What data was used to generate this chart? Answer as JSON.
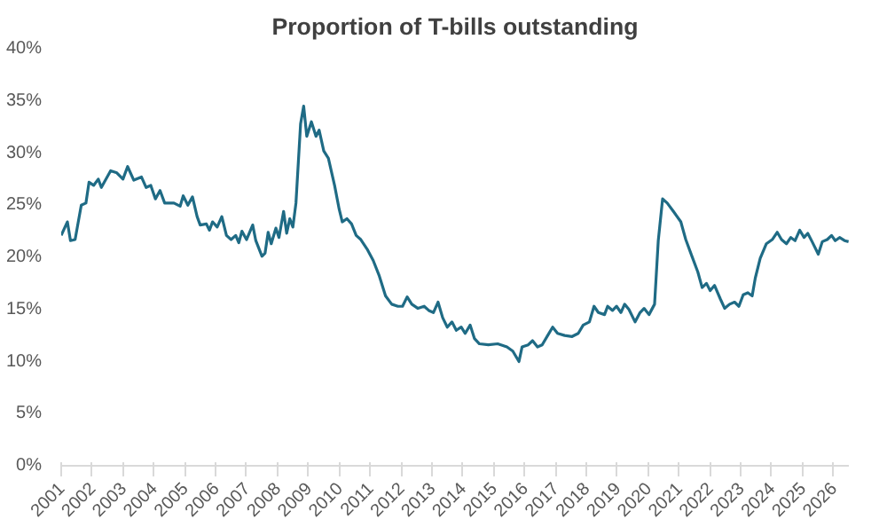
{
  "chart_data": {
    "type": "line",
    "title": "Proportion of T-bills outstanding",
    "x": [
      2001.0,
      2001.2,
      2001.3,
      2001.45,
      2001.65,
      2001.8,
      2001.9,
      2002.05,
      2002.2,
      2002.3,
      2002.6,
      2002.8,
      2003.0,
      2003.15,
      2003.35,
      2003.6,
      2003.75,
      2003.9,
      2004.05,
      2004.2,
      2004.35,
      2004.65,
      2004.85,
      2004.95,
      2005.1,
      2005.25,
      2005.4,
      2005.5,
      2005.7,
      2005.8,
      2005.9,
      2006.05,
      2006.2,
      2006.35,
      2006.5,
      2006.65,
      2006.75,
      2006.85,
      2007.0,
      2007.2,
      2007.3,
      2007.5,
      2007.6,
      2007.7,
      2007.8,
      2007.95,
      2008.05,
      2008.2,
      2008.3,
      2008.4,
      2008.5,
      2008.6,
      2008.75,
      2008.85,
      2008.95,
      2009.1,
      2009.25,
      2009.35,
      2009.5,
      2009.65,
      2009.85,
      2010.0,
      2010.1,
      2010.25,
      2010.4,
      2010.55,
      2010.7,
      2010.9,
      2011.1,
      2011.3,
      2011.5,
      2011.7,
      2011.9,
      2012.05,
      2012.2,
      2012.35,
      2012.55,
      2012.75,
      2012.9,
      2013.05,
      2013.2,
      2013.35,
      2013.5,
      2013.65,
      2013.79,
      2013.95,
      2014.08,
      2014.24,
      2014.38,
      2014.54,
      2014.83,
      2015.13,
      2015.43,
      2015.62,
      2015.82,
      2015.92,
      2016.12,
      2016.26,
      2016.42,
      2016.57,
      2016.75,
      2016.91,
      2017.07,
      2017.3,
      2017.54,
      2017.74,
      2017.9,
      2018.1,
      2018.25,
      2018.39,
      2018.59,
      2018.69,
      2018.85,
      2018.98,
      2019.12,
      2019.24,
      2019.38,
      2019.58,
      2019.74,
      2019.87,
      2020.03,
      2020.21,
      2020.33,
      2020.47,
      2020.62,
      2020.82,
      2021.06,
      2021.22,
      2021.42,
      2021.61,
      2021.75,
      2021.89,
      2022.01,
      2022.15,
      2022.34,
      2022.48,
      2022.64,
      2022.8,
      2022.94,
      2023.08,
      2023.23,
      2023.37,
      2023.47,
      2023.63,
      2023.83,
      2024.02,
      2024.18,
      2024.32,
      2024.48,
      2024.62,
      2024.76,
      2024.91,
      2025.05,
      2025.17,
      2025.31,
      2025.51,
      2025.64,
      2025.8,
      2025.94,
      2026.06,
      2026.2,
      2026.36,
      2026.49
    ],
    "series": [
      {
        "color": "#1f6b85",
        "values": [
          22.1,
          23.4,
          21.6,
          21.7,
          25.0,
          25.2,
          27.2,
          26.9,
          27.5,
          26.7,
          28.3,
          28.1,
          27.5,
          28.7,
          27.4,
          27.7,
          26.7,
          26.9,
          25.6,
          26.4,
          25.2,
          25.2,
          24.9,
          25.9,
          25.0,
          25.8,
          23.9,
          23.1,
          23.2,
          22.6,
          23.4,
          22.9,
          23.9,
          22.1,
          21.7,
          22.1,
          21.4,
          22.5,
          21.7,
          23.1,
          21.6,
          20.1,
          20.4,
          22.4,
          21.3,
          22.8,
          21.9,
          24.4,
          22.3,
          23.7,
          22.9,
          25.2,
          32.8,
          34.5,
          31.6,
          33.0,
          31.6,
          32.2,
          30.2,
          29.5,
          26.9,
          24.6,
          23.4,
          23.7,
          23.2,
          22.1,
          21.7,
          20.8,
          19.7,
          18.2,
          16.3,
          15.5,
          15.3,
          15.3,
          16.2,
          15.5,
          15.1,
          15.3,
          14.9,
          14.7,
          15.7,
          14.2,
          13.3,
          13.8,
          13.0,
          13.3,
          12.7,
          13.5,
          12.2,
          11.7,
          11.6,
          11.7,
          11.4,
          11.0,
          10.0,
          11.4,
          11.6,
          12.0,
          11.4,
          11.6,
          12.5,
          13.3,
          12.7,
          12.5,
          12.4,
          12.7,
          13.5,
          13.8,
          15.3,
          14.7,
          14.5,
          15.3,
          14.9,
          15.3,
          14.7,
          15.5,
          15.0,
          13.8,
          14.7,
          15.1,
          14.5,
          15.5,
          21.6,
          25.6,
          25.2,
          24.4,
          23.4,
          21.7,
          20.1,
          18.6,
          17.1,
          17.5,
          16.8,
          17.3,
          16.0,
          15.1,
          15.5,
          15.7,
          15.3,
          16.4,
          16.6,
          16.3,
          18.0,
          19.9,
          21.3,
          21.7,
          22.4,
          21.7,
          21.3,
          21.9,
          21.6,
          22.6,
          21.9,
          22.3,
          21.5,
          20.3,
          21.5,
          21.7,
          22.1,
          21.6,
          21.9,
          21.6,
          21.5
        ]
      }
    ],
    "xlim": [
      2001,
      2026.5
    ],
    "xticks": [
      2001,
      2002,
      2003,
      2004,
      2005,
      2006,
      2007,
      2008,
      2009,
      2010,
      2011,
      2012,
      2013,
      2014,
      2015,
      2016,
      2017,
      2018,
      2019,
      2020,
      2021,
      2022,
      2023,
      2024,
      2025,
      2026
    ],
    "ylim": [
      0,
      40
    ],
    "yticks": [
      {
        "value": 0,
        "label": "0%"
      },
      {
        "value": 5,
        "label": "5%"
      },
      {
        "value": 10,
        "label": "10%"
      },
      {
        "value": 15,
        "label": "15%"
      },
      {
        "value": 20,
        "label": "20%"
      },
      {
        "value": 25,
        "label": "25%"
      },
      {
        "value": 30,
        "label": "30%"
      },
      {
        "value": 35,
        "label": "35%"
      },
      {
        "value": 40,
        "label": "40%"
      }
    ],
    "grid": false,
    "marker": "none",
    "line_style": "solid"
  }
}
